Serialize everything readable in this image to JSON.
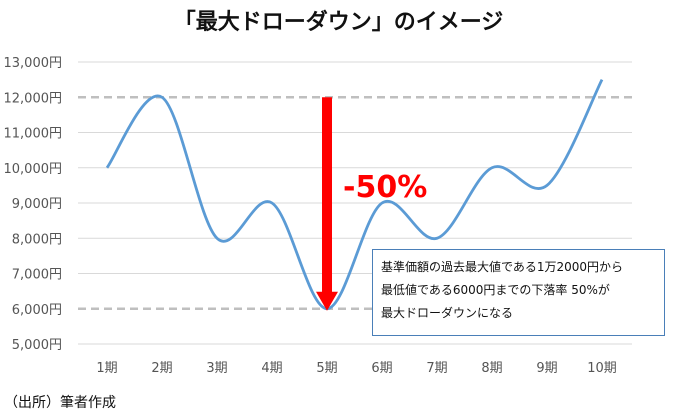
{
  "chart_data": {
    "type": "line",
    "title": "「最大ドローダウン」のイメージ",
    "xlabel": "",
    "ylabel": "",
    "categories": [
      "1期",
      "2期",
      "3期",
      "4期",
      "5期",
      "6期",
      "7期",
      "8期",
      "9期",
      "10期"
    ],
    "series": [
      {
        "values": [
          10000,
          12000,
          8000,
          9000,
          6000,
          9000,
          8000,
          10000,
          9500,
          12500
        ],
        "color": "#5b9bd5"
      }
    ],
    "ylim": [
      5000,
      13000
    ],
    "y_ticks": [
      "5,000円",
      "6,000円",
      "7,000円",
      "8,000円",
      "9,000円",
      "10,000円",
      "11,000円",
      "12,000円",
      "13,000円"
    ],
    "y_tick_values": [
      5000,
      6000,
      7000,
      8000,
      9000,
      10000,
      11000,
      12000,
      13000
    ],
    "grid": true,
    "reference_lines": [
      12000,
      6000
    ],
    "drawdown": {
      "from": 12000,
      "to": 6000,
      "label": "-50%",
      "color": "#ff0000",
      "category_index": 4
    },
    "annotation": {
      "lines": [
        "基準価額の過去最大値である1万2000円から",
        "最低値である6000円までの下落率 50%が",
        "最大ドローダウンになる"
      ]
    }
  },
  "source": "（出所）筆者作成"
}
